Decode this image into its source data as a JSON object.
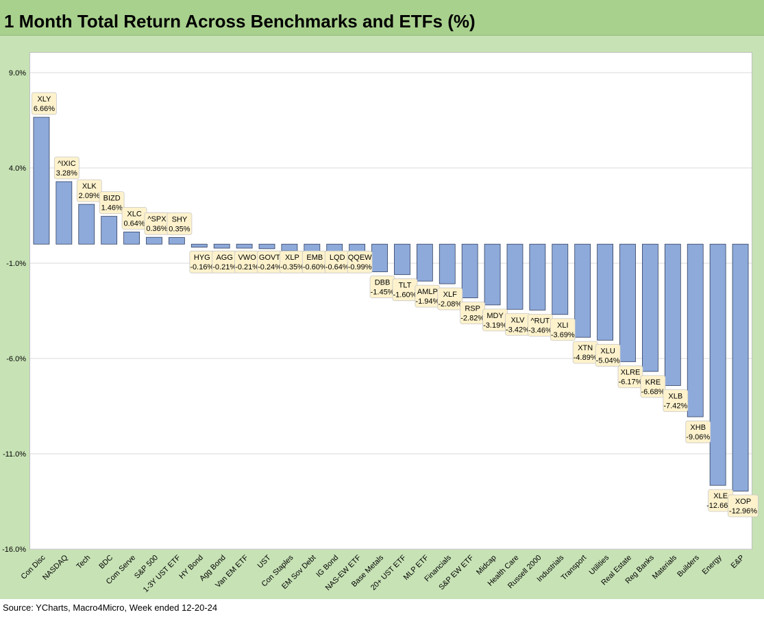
{
  "title": "1 Month Total Return Across Benchmarks and ETFs (%)",
  "source": "Source: YCharts, Macro4Micro, Week ended 12-20-24",
  "colors": {
    "bar": "#8eaadb",
    "bar_border": "#2f3e5c",
    "frame": "#c7e2b5",
    "title_bg": "#a9d18e",
    "label_bg": "#fdf2cc"
  },
  "chart_data": {
    "type": "bar",
    "title": "1 Month Total Return Across Benchmarks and ETFs (%)",
    "xlabel": "",
    "ylabel": "",
    "ylim": [
      -16,
      11
    ],
    "yticks": [
      9,
      4,
      -1,
      -6,
      -11,
      -16
    ],
    "ytick_labels": [
      "9.0%",
      "4.0%",
      "-1.0%",
      "-6.0%",
      "-11.0%",
      "-16.0%"
    ],
    "grid": true,
    "legend": "none",
    "categories": [
      "Con Disc",
      "NASDAQ",
      "Tech",
      "BDC",
      "Com Serve",
      "S&P 500",
      "1-3Y UST ETF",
      "HY Bond",
      "Agg Bond",
      "Van EM ETF",
      "UST",
      "Con Staples",
      "EM Sov Debt",
      "IG Bond",
      "NAS-EW ETF",
      "Base Metals",
      "20+ UST ETF",
      "MLP ETF",
      "Financials",
      "S&P EW ETF",
      "Midcap",
      "Health Care",
      "Russell 2000",
      "Industrials",
      "Transport",
      "Utilities",
      "Real Estate",
      "Reg Banks",
      "Materials",
      "Builders",
      "Energy",
      "E&P"
    ],
    "tickers": [
      "XLY",
      "^IXIC",
      "XLK",
      "BIZD",
      "XLC",
      "^SPX",
      "SHY",
      "HYG",
      "AGG",
      "VWO",
      "GOVT",
      "XLP",
      "EMB",
      "LQD",
      "QQEW",
      "DBB",
      "TLT",
      "AMLP",
      "XLF",
      "RSP",
      "MDY",
      "XLV",
      "^RUT",
      "XLI",
      "XTN",
      "XLU",
      "XLRE",
      "KRE",
      "XLB",
      "XHB",
      "XLE",
      "XOP"
    ],
    "values": [
      6.66,
      3.28,
      2.09,
      1.46,
      0.64,
      0.36,
      0.35,
      -0.16,
      -0.21,
      -0.21,
      -0.24,
      -0.35,
      -0.6,
      -0.64,
      -0.99,
      -1.45,
      -1.6,
      -1.94,
      -2.08,
      -2.82,
      -3.19,
      -3.42,
      -3.46,
      -3.69,
      -4.89,
      -5.04,
      -6.17,
      -6.68,
      -7.42,
      -9.06,
      -12.66,
      -12.96
    ],
    "value_labels": [
      "6.66%",
      "3.28%",
      "2.09%",
      "1.46%",
      "0.64%",
      "0.36%",
      "0.35%",
      "-0.16%",
      "-0.21%",
      "-0.21%",
      "-0.24%",
      "-0.35%",
      "-0.60%",
      "-0.64%",
      "-0.99%",
      "-1.45%",
      "-1.60%",
      "-1.94%",
      "-2.08%",
      "-2.82%",
      "-3.19%",
      "-3.42%",
      "-3.46%",
      "-3.69%",
      "-4.89%",
      "-5.04%",
      "-6.17%",
      "-6.68%",
      "-7.42%",
      "-9.06%",
      "-12.66%",
      "-12.96%"
    ]
  }
}
